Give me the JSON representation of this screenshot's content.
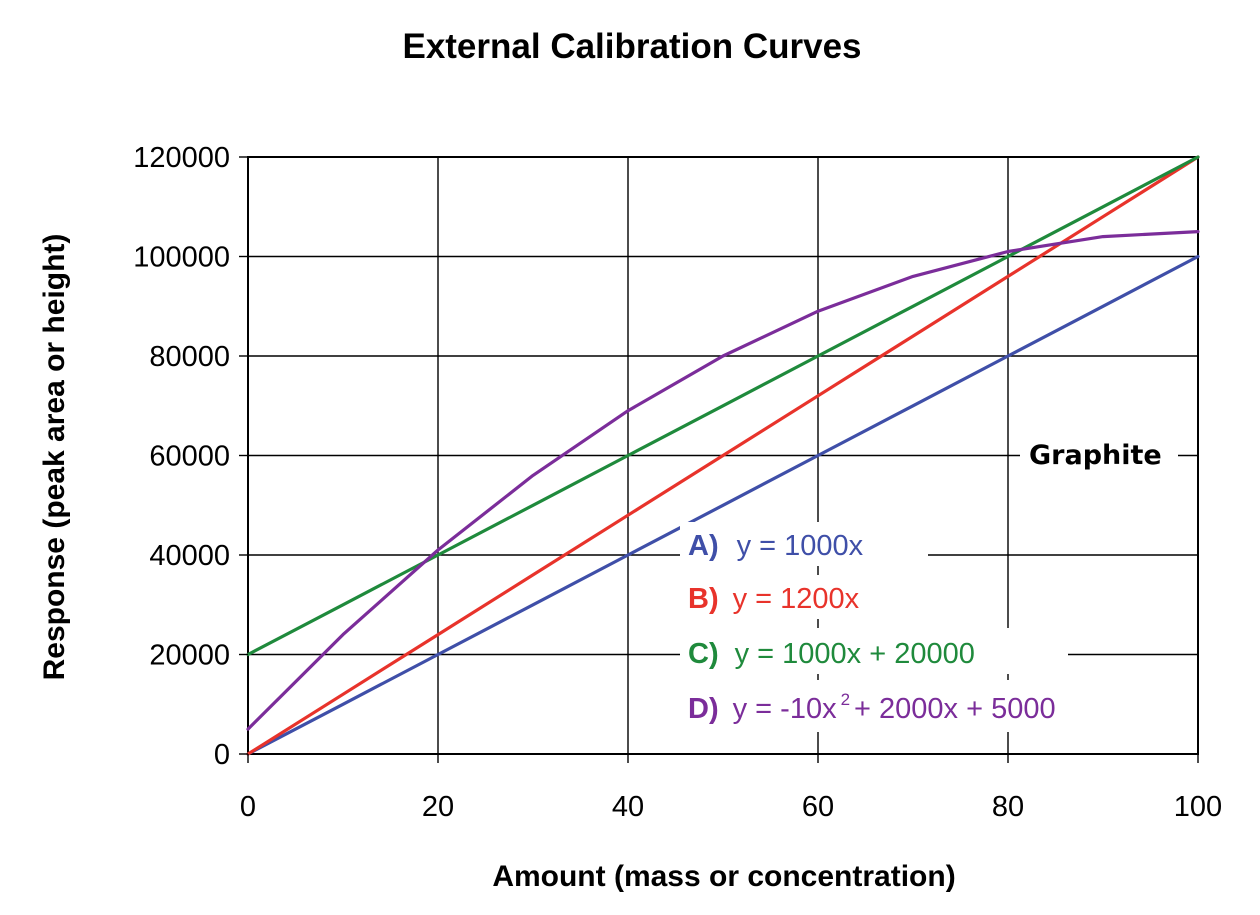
{
  "chart_data": {
    "type": "line",
    "title": "External Calibration Curves",
    "xlabel": "Amount (mass or concentration)",
    "ylabel": "Response (peak area or height)",
    "xlim": [
      0,
      100
    ],
    "ylim": [
      0,
      120000
    ],
    "x_ticks": [
      "0",
      "20",
      "40",
      "60",
      "80",
      "100"
    ],
    "y_ticks": [
      "0",
      "20000",
      "40000",
      "60000",
      "80000",
      "100000",
      "120000"
    ],
    "grid": true,
    "x": [
      0,
      10,
      20,
      30,
      40,
      50,
      60,
      70,
      80,
      90,
      100
    ],
    "series": [
      {
        "key": "A)",
        "equation": "y = 1000x",
        "color": "#3f4fa8",
        "values": [
          0,
          10000,
          20000,
          30000,
          40000,
          50000,
          60000,
          70000,
          80000,
          90000,
          100000
        ]
      },
      {
        "key": "B)",
        "equation": "y = 1200x",
        "color": "#e8332b",
        "values": [
          0,
          12000,
          24000,
          36000,
          48000,
          60000,
          72000,
          84000,
          96000,
          108000,
          120000
        ]
      },
      {
        "key": "C)",
        "equation": "y = 1000x + 20000",
        "color": "#1f8a3c",
        "values": [
          20000,
          30000,
          40000,
          50000,
          60000,
          70000,
          80000,
          90000,
          100000,
          110000,
          120000
        ]
      },
      {
        "key": "D)",
        "equation_parts": [
          "y = -10x",
          "2",
          " + 2000x + 5000"
        ],
        "color": "#7b2d9a",
        "values": [
          5000,
          24000,
          41000,
          56000,
          69000,
          80000,
          89000,
          96000,
          101000,
          104000,
          105000
        ]
      }
    ],
    "legend_position": "bottom-right",
    "annotation": "Graphite"
  }
}
